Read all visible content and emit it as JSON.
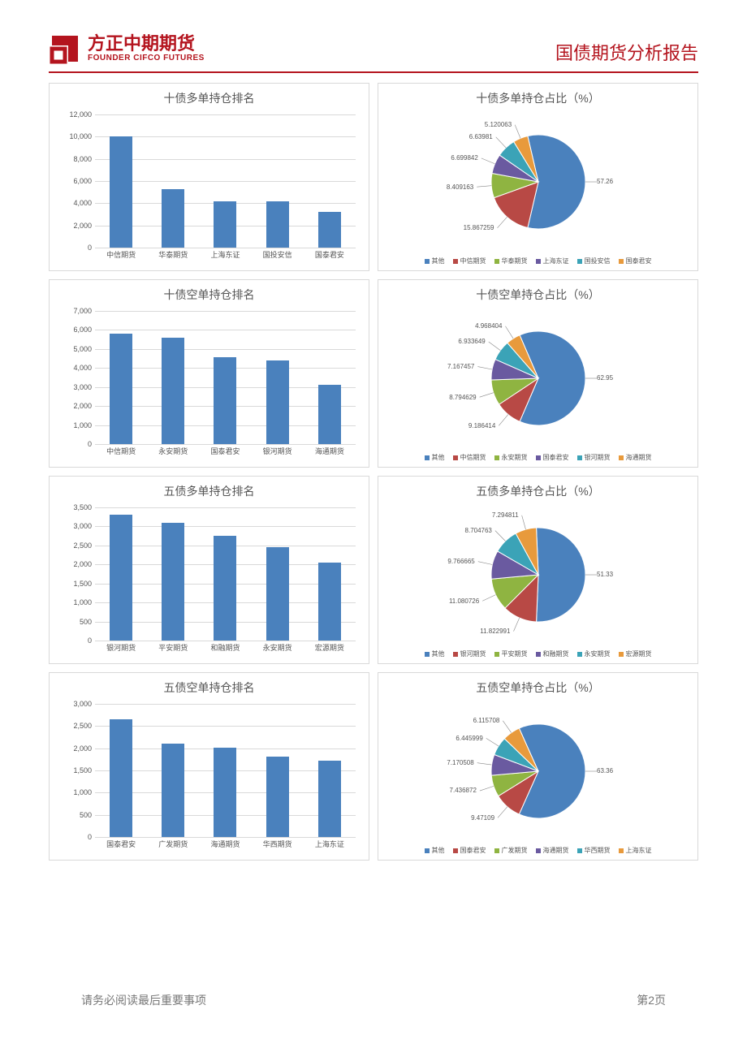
{
  "brand": {
    "color": "#b4141e",
    "logo_cn": "方正中期期货",
    "logo_en": "FOUNDER CIFCO FUTURES",
    "report_title": "国债期货分析报告"
  },
  "page": {
    "footer_note": "请务必阅读最后重要事项",
    "page_number": "第2页",
    "footer_color": "#777777",
    "panel_border": "#d9d9d9",
    "title_color": "#555555",
    "grid_color": "#d9d9d9",
    "tick_color": "#555555",
    "bar_color": "#4a81bd"
  },
  "pie_palette": [
    "#4a81bd",
    "#b84945",
    "#8fb441",
    "#6a5aa0",
    "#3ba3b7",
    "#e89a3c"
  ],
  "rows": [
    {
      "bar": {
        "title": "十债多单持仓排名",
        "ymax": 12000,
        "ystep": 2000,
        "categories": [
          "中信期货",
          "华泰期货",
          "上海东证",
          "国投安信",
          "国泰君安"
        ],
        "values": [
          10000,
          5300,
          4200,
          4150,
          3250
        ]
      },
      "pie": {
        "title": "十债多单持仓占比（%）",
        "legend": [
          "其他",
          "中信期货",
          "华泰期货",
          "上海东证",
          "国投安信",
          "国泰君安"
        ],
        "values": [
          57.26,
          15.867259,
          8.409163,
          6.699842,
          6.63981,
          5.120063
        ],
        "labels": [
          "57.26",
          "15.867259",
          "8.409163",
          "6.699842",
          "6.63981",
          "5.120063"
        ],
        "big_label_show": true
      }
    },
    {
      "bar": {
        "title": "十债空单持仓排名",
        "ymax": 7000,
        "ystep": 1000,
        "categories": [
          "中信期货",
          "永安期货",
          "国泰君安",
          "银河期货",
          "海通期货"
        ],
        "values": [
          5800,
          5600,
          4550,
          4400,
          3100
        ]
      },
      "pie": {
        "title": "十债空单持仓占比（%）",
        "legend": [
          "其他",
          "中信期货",
          "永安期货",
          "国泰君安",
          "银河期货",
          "海通期货"
        ],
        "values": [
          62.95,
          9.186414,
          8.794629,
          7.167457,
          6.933649,
          4.968404
        ],
        "labels": [
          "62.95",
          "9.186414",
          "8.794629",
          "7.167457",
          "6.933649",
          "4.968404"
        ],
        "big_label_show": true
      }
    },
    {
      "bar": {
        "title": "五债多单持仓排名",
        "ymax": 3500,
        "ystep": 500,
        "categories": [
          "银河期货",
          "平安期货",
          "和融期货",
          "永安期货",
          "宏源期货"
        ],
        "values": [
          3300,
          3100,
          2750,
          2450,
          2050
        ]
      },
      "pie": {
        "title": "五债多单持仓占比（%）",
        "legend": [
          "其他",
          "银河期货",
          "平安期货",
          "和融期货",
          "永安期货",
          "宏源期货"
        ],
        "values": [
          51.33,
          11.822991,
          11.080726,
          9.766665,
          8.704763,
          7.294811
        ],
        "labels": [
          "51.33",
          "11.822991",
          "11.080726",
          "9.766665",
          "8.704763",
          "7.294811"
        ],
        "big_label_show": true
      }
    },
    {
      "bar": {
        "title": "五债空单持仓排名",
        "ymax": 3000,
        "ystep": 500,
        "categories": [
          "国泰君安",
          "广发期货",
          "海通期货",
          "华西期货",
          "上海东证"
        ],
        "values": [
          2650,
          2100,
          2020,
          1820,
          1720
        ]
      },
      "pie": {
        "title": "五债空单持仓占比（%）",
        "legend": [
          "其他",
          "国泰君安",
          "广发期货",
          "海通期货",
          "华西期货",
          "上海东证"
        ],
        "values": [
          63.36,
          9.47109,
          7.436872,
          7.170508,
          6.445999,
          6.115708
        ],
        "labels": [
          "63.36",
          "9.47109",
          "7.436872",
          "7.170508",
          "6.445999",
          "6.115708"
        ],
        "big_label_show": true
      }
    }
  ]
}
